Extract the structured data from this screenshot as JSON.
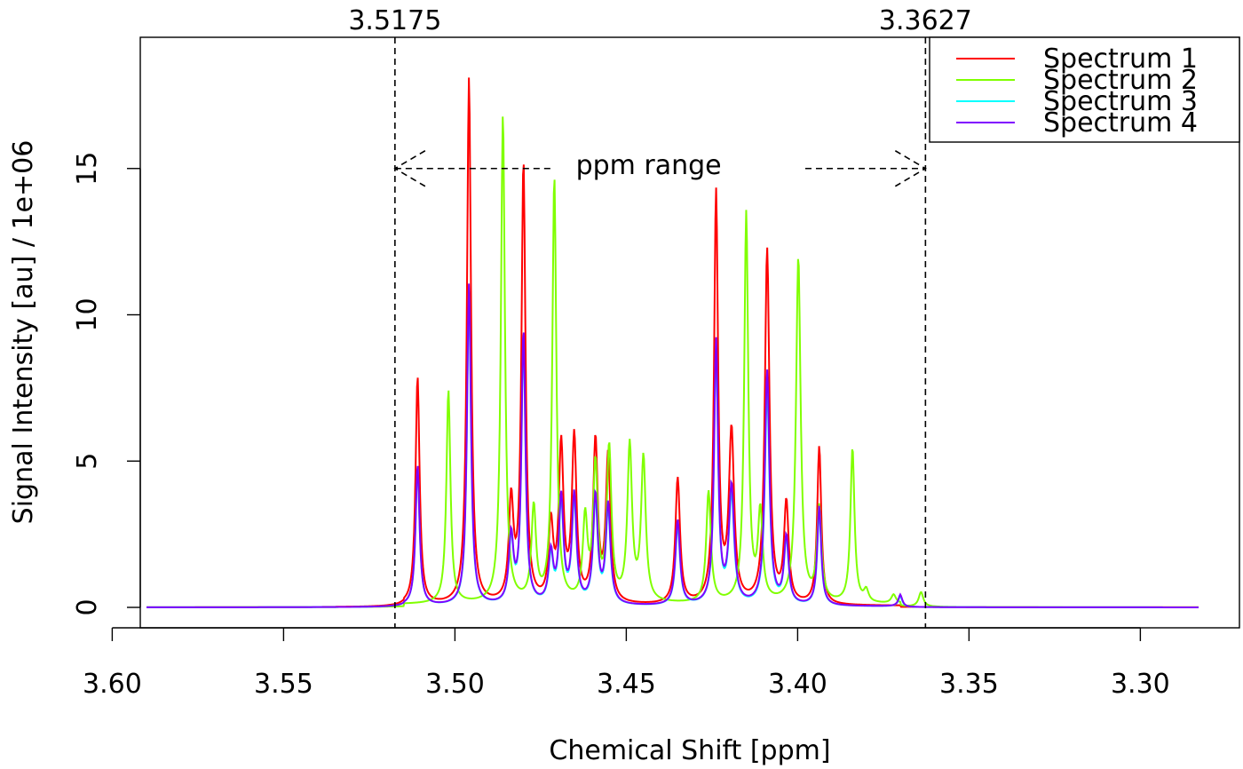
{
  "chart_data": {
    "type": "line",
    "title": "",
    "xlabel": "Chemical Shift [ppm]",
    "ylabel": "Signal Intensity [au] / 1e+06",
    "xlim": [
      3.59,
      3.283
    ],
    "x_reversed": true,
    "ylim": [
      0,
      19
    ],
    "x_ticks": [
      "3.60",
      "3.55",
      "3.50",
      "3.45",
      "3.40",
      "3.35",
      "3.30"
    ],
    "y_ticks": [
      "0",
      "5",
      "10",
      "15"
    ],
    "grid": false,
    "legend_position": "top-right",
    "annotations": {
      "range_start": 3.5175,
      "range_end": 3.3627,
      "range_start_label": "3.5175",
      "range_end_label": "3.3627",
      "range_label": "ppm range",
      "arrow_level": 15
    },
    "series": [
      {
        "name": "Spectrum 1",
        "color": "#ff0000",
        "baseline": 0.05,
        "peaks": [
          [
            3.5109,
            7.8,
            0.0007
          ],
          [
            3.4959,
            18.0,
            0.0007
          ],
          [
            3.4836,
            3.4,
            0.0008
          ],
          [
            3.48,
            15.0,
            0.0007
          ],
          [
            3.472,
            2.6,
            0.0008
          ],
          [
            3.469,
            5.3,
            0.0008
          ],
          [
            3.4652,
            5.6,
            0.0008
          ],
          [
            3.459,
            5.5,
            0.0008
          ],
          [
            3.4553,
            5.0,
            0.0008
          ],
          [
            3.435,
            4.3,
            0.0008
          ],
          [
            3.4238,
            14.0,
            0.0007
          ],
          [
            3.4193,
            5.8,
            0.0009
          ],
          [
            3.4089,
            12.1,
            0.0008
          ],
          [
            3.4033,
            3.4,
            0.0008
          ],
          [
            3.3937,
            5.4,
            0.0007
          ]
        ]
      },
      {
        "name": "Spectrum 2",
        "color": "#80ff00",
        "baseline": 0.1,
        "peaks": [
          [
            3.5019,
            7.3,
            0.0007
          ],
          [
            3.486,
            16.7,
            0.0007
          ],
          [
            3.477,
            3.2,
            0.0008
          ],
          [
            3.471,
            14.5,
            0.0007
          ],
          [
            3.462,
            2.8,
            0.0008
          ],
          [
            3.459,
            4.6,
            0.0008
          ],
          [
            3.455,
            5.2,
            0.0008
          ],
          [
            3.449,
            5.3,
            0.0008
          ],
          [
            3.445,
            4.9,
            0.0008
          ],
          [
            3.426,
            3.8,
            0.0008
          ],
          [
            3.415,
            13.3,
            0.0007
          ],
          [
            3.4109,
            3.0,
            0.0008
          ],
          [
            3.3998,
            11.8,
            0.0008
          ],
          [
            3.3937,
            3.2,
            0.0008
          ],
          [
            3.384,
            5.3,
            0.0007
          ],
          [
            3.38,
            0.4,
            0.0008
          ],
          [
            3.372,
            0.3,
            0.0008
          ],
          [
            3.364,
            0.5,
            0.0008
          ]
        ]
      },
      {
        "name": "Spectrum 3",
        "color": "#00ffff",
        "baseline": 0.03,
        "peaks": [
          [
            3.5109,
            4.7,
            0.0007
          ],
          [
            3.4959,
            10.5,
            0.0007
          ],
          [
            3.4836,
            2.2,
            0.0008
          ],
          [
            3.48,
            9.0,
            0.0007
          ],
          [
            3.472,
            1.6,
            0.0008
          ],
          [
            3.469,
            3.4,
            0.0008
          ],
          [
            3.4652,
            3.5,
            0.0008
          ],
          [
            3.459,
            3.5,
            0.0008
          ],
          [
            3.4553,
            3.2,
            0.0008
          ],
          [
            3.435,
            2.7,
            0.0008
          ],
          [
            3.4238,
            8.7,
            0.0007
          ],
          [
            3.4193,
            3.7,
            0.0009
          ],
          [
            3.4089,
            7.3,
            0.0008
          ],
          [
            3.4033,
            2.2,
            0.0008
          ],
          [
            3.3937,
            3.2,
            0.0007
          ],
          [
            3.37,
            0.35,
            0.0007
          ]
        ]
      },
      {
        "name": "Spectrum 4",
        "color": "#8000ff",
        "baseline": 0.03,
        "peaks": [
          [
            3.5109,
            4.8,
            0.0007
          ],
          [
            3.4959,
            11.0,
            0.0007
          ],
          [
            3.4836,
            2.3,
            0.0008
          ],
          [
            3.48,
            9.3,
            0.0007
          ],
          [
            3.472,
            1.7,
            0.0008
          ],
          [
            3.469,
            3.6,
            0.0008
          ],
          [
            3.4652,
            3.7,
            0.0008
          ],
          [
            3.459,
            3.7,
            0.0008
          ],
          [
            3.4553,
            3.4,
            0.0008
          ],
          [
            3.435,
            2.9,
            0.0008
          ],
          [
            3.4238,
            9.0,
            0.0007
          ],
          [
            3.4193,
            4.0,
            0.0009
          ],
          [
            3.4089,
            8.0,
            0.0008
          ],
          [
            3.4033,
            2.3,
            0.0008
          ],
          [
            3.3937,
            3.4,
            0.0007
          ],
          [
            3.37,
            0.4,
            0.0007
          ]
        ]
      }
    ]
  }
}
